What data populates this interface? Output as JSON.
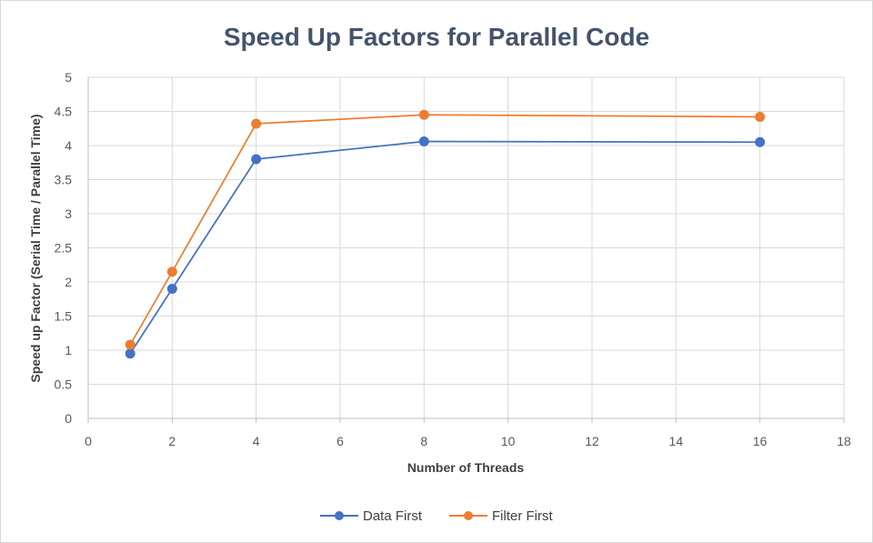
{
  "chart_data": {
    "type": "line",
    "title": "Speed Up Factors for Parallel Code",
    "xlabel": "Number of Threads",
    "ylabel": "Speed up Factor (Serial Time / Parallel Time)",
    "xlim": [
      0,
      18
    ],
    "ylim": [
      0,
      5
    ],
    "x_ticks": [
      "0",
      "2",
      "4",
      "6",
      "8",
      "10",
      "12",
      "14",
      "16",
      "18"
    ],
    "y_ticks": [
      "0",
      "0.5",
      "1",
      "1.5",
      "2",
      "2.5",
      "3",
      "3.5",
      "4",
      "4.5",
      "5"
    ],
    "grid": true,
    "legend_position": "bottom",
    "x": [
      1,
      2,
      4,
      8,
      16
    ],
    "series": [
      {
        "name": "Data First",
        "color": "#4472c4",
        "values": [
          0.95,
          1.9,
          3.8,
          4.06,
          4.05
        ]
      },
      {
        "name": "Filter First",
        "color": "#ed7d31",
        "values": [
          1.08,
          2.15,
          4.32,
          4.45,
          4.42
        ]
      }
    ]
  }
}
